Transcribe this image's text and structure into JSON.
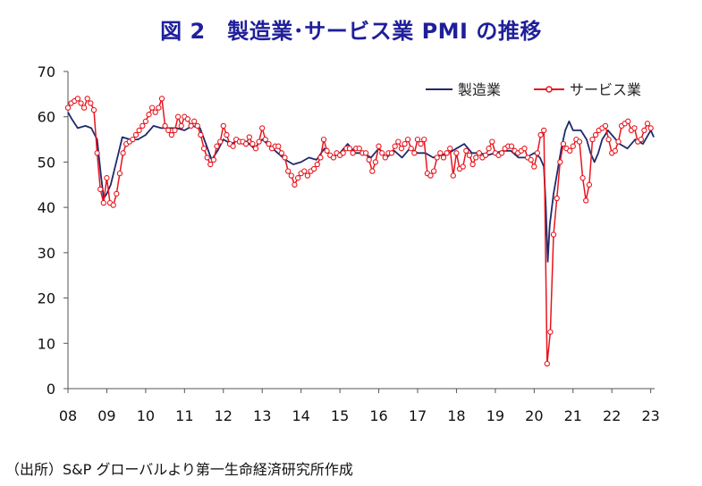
{
  "figure": {
    "title": "図 2　製造業･サービス業 PMI の推移",
    "source": "（出所）S&P グローバルより第一生命経済研究所作成"
  },
  "colors": {
    "title": "#1f1f9a",
    "manufacturing": "#1f2a6b",
    "services": "#e8141c",
    "axis": "#555555"
  },
  "chart_data": {
    "type": "line",
    "title": "図 2　製造業･サービス業 PMI の推移",
    "xlabel": "",
    "ylabel": "",
    "xlim": [
      2008,
      2023.1
    ],
    "ylim": [
      0,
      70
    ],
    "y_ticks": [
      0,
      10,
      20,
      30,
      40,
      50,
      60,
      70
    ],
    "x_ticks": [
      {
        "value": 2008,
        "label": "08"
      },
      {
        "value": 2009,
        "label": "09"
      },
      {
        "value": 2010,
        "label": "10"
      },
      {
        "value": 2011,
        "label": "11"
      },
      {
        "value": 2012,
        "label": "12"
      },
      {
        "value": 2013,
        "label": "13"
      },
      {
        "value": 2014,
        "label": "14"
      },
      {
        "value": 2015,
        "label": "15"
      },
      {
        "value": 2016,
        "label": "16"
      },
      {
        "value": 2017,
        "label": "17"
      },
      {
        "value": 2018,
        "label": "18"
      },
      {
        "value": 2019,
        "label": "19"
      },
      {
        "value": 2020,
        "label": "20"
      },
      {
        "value": 2021,
        "label": "21"
      },
      {
        "value": 2022,
        "label": "22"
      },
      {
        "value": 2023,
        "label": "23"
      }
    ],
    "grid": false,
    "legend": "top-right",
    "series": [
      {
        "name": "製造業",
        "key": "manufacturing",
        "marker": "none",
        "points": [
          [
            2008.0,
            61
          ],
          [
            2008.1,
            59.5
          ],
          [
            2008.25,
            57.5
          ],
          [
            2008.45,
            58
          ],
          [
            2008.6,
            57.5
          ],
          [
            2008.75,
            55
          ],
          [
            2008.85,
            47
          ],
          [
            2008.92,
            42
          ],
          [
            2009.0,
            43
          ],
          [
            2009.1,
            45
          ],
          [
            2009.3,
            52
          ],
          [
            2009.4,
            55.5
          ],
          [
            2009.6,
            55
          ],
          [
            2009.8,
            55
          ],
          [
            2010.0,
            56
          ],
          [
            2010.2,
            58
          ],
          [
            2010.4,
            57.5
          ],
          [
            2010.6,
            57.5
          ],
          [
            2010.8,
            57.5
          ],
          [
            2011.0,
            57
          ],
          [
            2011.2,
            58
          ],
          [
            2011.4,
            57.5
          ],
          [
            2011.55,
            54
          ],
          [
            2011.7,
            50.5
          ],
          [
            2011.85,
            52.5
          ],
          [
            2012.0,
            55
          ],
          [
            2012.2,
            54
          ],
          [
            2012.4,
            55
          ],
          [
            2012.6,
            54.5
          ],
          [
            2012.8,
            53
          ],
          [
            2013.0,
            55
          ],
          [
            2013.2,
            53.5
          ],
          [
            2013.4,
            52
          ],
          [
            2013.6,
            50.5
          ],
          [
            2013.8,
            49.5
          ],
          [
            2014.0,
            50
          ],
          [
            2014.2,
            51
          ],
          [
            2014.4,
            50.5
          ],
          [
            2014.6,
            53
          ],
          [
            2014.8,
            51
          ],
          [
            2015.0,
            52
          ],
          [
            2015.2,
            54
          ],
          [
            2015.4,
            52
          ],
          [
            2015.6,
            52
          ],
          [
            2015.8,
            51
          ],
          [
            2016.0,
            53
          ],
          [
            2016.2,
            51
          ],
          [
            2016.4,
            52.5
          ],
          [
            2016.6,
            51
          ],
          [
            2016.8,
            53
          ],
          [
            2017.0,
            52
          ],
          [
            2017.2,
            52
          ],
          [
            2017.4,
            51
          ],
          [
            2017.6,
            51.5
          ],
          [
            2017.8,
            52
          ],
          [
            2018.0,
            53
          ],
          [
            2018.2,
            54
          ],
          [
            2018.4,
            52
          ],
          [
            2018.6,
            52
          ],
          [
            2018.8,
            51.5
          ],
          [
            2019.0,
            52
          ],
          [
            2019.2,
            52.5
          ],
          [
            2019.4,
            52.5
          ],
          [
            2019.6,
            51
          ],
          [
            2019.8,
            51
          ],
          [
            2020.0,
            52
          ],
          [
            2020.15,
            51
          ],
          [
            2020.25,
            49
          ],
          [
            2020.3,
            40
          ],
          [
            2020.35,
            28
          ],
          [
            2020.4,
            36
          ],
          [
            2020.5,
            43
          ],
          [
            2020.6,
            48
          ],
          [
            2020.7,
            53
          ],
          [
            2020.8,
            57
          ],
          [
            2020.9,
            59
          ],
          [
            2021.0,
            57
          ],
          [
            2021.2,
            57
          ],
          [
            2021.35,
            55
          ],
          [
            2021.45,
            52
          ],
          [
            2021.55,
            50
          ],
          [
            2021.65,
            52
          ],
          [
            2021.75,
            55
          ],
          [
            2021.9,
            57
          ],
          [
            2022.0,
            56
          ],
          [
            2022.2,
            54
          ],
          [
            2022.4,
            53
          ],
          [
            2022.6,
            55
          ],
          [
            2022.8,
            54
          ],
          [
            2023.0,
            57
          ],
          [
            2023.08,
            55.5
          ]
        ]
      },
      {
        "name": "サービス業",
        "key": "services",
        "marker": "open-circle",
        "points": [
          [
            2008.0,
            62
          ],
          [
            2008.083,
            63
          ],
          [
            2008.167,
            63.5
          ],
          [
            2008.25,
            64
          ],
          [
            2008.333,
            63
          ],
          [
            2008.417,
            62
          ],
          [
            2008.5,
            64
          ],
          [
            2008.583,
            63
          ],
          [
            2008.667,
            61.5
          ],
          [
            2008.75,
            52
          ],
          [
            2008.833,
            44
          ],
          [
            2008.917,
            41
          ],
          [
            2009.0,
            46.5
          ],
          [
            2009.083,
            41
          ],
          [
            2009.167,
            40.5
          ],
          [
            2009.25,
            43
          ],
          [
            2009.333,
            47.5
          ],
          [
            2009.417,
            52
          ],
          [
            2009.5,
            54
          ],
          [
            2009.583,
            54.5
          ],
          [
            2009.667,
            55
          ],
          [
            2009.75,
            56
          ],
          [
            2009.833,
            57
          ],
          [
            2009.917,
            58
          ],
          [
            2010.0,
            59
          ],
          [
            2010.083,
            60.5
          ],
          [
            2010.167,
            62
          ],
          [
            2010.25,
            61
          ],
          [
            2010.333,
            62
          ],
          [
            2010.417,
            64
          ],
          [
            2010.5,
            58
          ],
          [
            2010.583,
            57
          ],
          [
            2010.667,
            56
          ],
          [
            2010.75,
            57
          ],
          [
            2010.833,
            60
          ],
          [
            2010.917,
            58
          ],
          [
            2011.0,
            60
          ],
          [
            2011.083,
            59.5
          ],
          [
            2011.167,
            58
          ],
          [
            2011.25,
            59
          ],
          [
            2011.333,
            58
          ],
          [
            2011.417,
            56
          ],
          [
            2011.5,
            53
          ],
          [
            2011.583,
            51
          ],
          [
            2011.667,
            49.5
          ],
          [
            2011.75,
            50.5
          ],
          [
            2011.833,
            53.5
          ],
          [
            2011.917,
            54.5
          ],
          [
            2012.0,
            58
          ],
          [
            2012.083,
            56
          ],
          [
            2012.167,
            54
          ],
          [
            2012.25,
            53.5
          ],
          [
            2012.333,
            55
          ],
          [
            2012.417,
            54.5
          ],
          [
            2012.5,
            54.5
          ],
          [
            2012.583,
            54
          ],
          [
            2012.667,
            55.5
          ],
          [
            2012.75,
            54
          ],
          [
            2012.833,
            53
          ],
          [
            2012.917,
            54.5
          ],
          [
            2013.0,
            57.5
          ],
          [
            2013.083,
            55
          ],
          [
            2013.167,
            54
          ],
          [
            2013.25,
            53
          ],
          [
            2013.333,
            53.5
          ],
          [
            2013.417,
            53.5
          ],
          [
            2013.5,
            52
          ],
          [
            2013.583,
            51
          ],
          [
            2013.667,
            48
          ],
          [
            2013.75,
            47
          ],
          [
            2013.833,
            45
          ],
          [
            2013.917,
            46.5
          ],
          [
            2014.0,
            47.5
          ],
          [
            2014.083,
            48
          ],
          [
            2014.167,
            47
          ],
          [
            2014.25,
            48
          ],
          [
            2014.333,
            48.5
          ],
          [
            2014.417,
            49.5
          ],
          [
            2014.5,
            51
          ],
          [
            2014.583,
            55
          ],
          [
            2014.667,
            52.5
          ],
          [
            2014.75,
            51.5
          ],
          [
            2014.833,
            51
          ],
          [
            2014.917,
            52
          ],
          [
            2015.0,
            51.5
          ],
          [
            2015.083,
            52
          ],
          [
            2015.167,
            53
          ],
          [
            2015.25,
            53
          ],
          [
            2015.333,
            52
          ],
          [
            2015.417,
            53
          ],
          [
            2015.5,
            53
          ],
          [
            2015.583,
            52
          ],
          [
            2015.667,
            52
          ],
          [
            2015.75,
            50.5
          ],
          [
            2015.833,
            48
          ],
          [
            2015.917,
            50
          ],
          [
            2016.0,
            53.5
          ],
          [
            2016.083,
            52
          ],
          [
            2016.167,
            51
          ],
          [
            2016.25,
            52
          ],
          [
            2016.333,
            52
          ],
          [
            2016.417,
            53.5
          ],
          [
            2016.5,
            54.5
          ],
          [
            2016.583,
            53
          ],
          [
            2016.667,
            54
          ],
          [
            2016.75,
            55
          ],
          [
            2016.833,
            53
          ],
          [
            2016.917,
            52
          ],
          [
            2017.0,
            55
          ],
          [
            2017.083,
            54
          ],
          [
            2017.167,
            55
          ],
          [
            2017.25,
            47.5
          ],
          [
            2017.333,
            47
          ],
          [
            2017.417,
            48
          ],
          [
            2017.5,
            51
          ],
          [
            2017.583,
            52
          ],
          [
            2017.667,
            51
          ],
          [
            2017.75,
            52
          ],
          [
            2017.833,
            53
          ],
          [
            2017.917,
            47
          ],
          [
            2018.0,
            52
          ],
          [
            2018.083,
            48.5
          ],
          [
            2018.167,
            49
          ],
          [
            2018.25,
            52.5
          ],
          [
            2018.333,
            51.5
          ],
          [
            2018.417,
            49.5
          ],
          [
            2018.5,
            51
          ],
          [
            2018.583,
            52
          ],
          [
            2018.667,
            51
          ],
          [
            2018.75,
            51.5
          ],
          [
            2018.833,
            53
          ],
          [
            2018.917,
            54.5
          ],
          [
            2019.0,
            52
          ],
          [
            2019.083,
            51.5
          ],
          [
            2019.167,
            52
          ],
          [
            2019.25,
            53
          ],
          [
            2019.333,
            53.5
          ],
          [
            2019.417,
            53.5
          ],
          [
            2019.5,
            52.5
          ],
          [
            2019.583,
            52
          ],
          [
            2019.667,
            52.5
          ],
          [
            2019.75,
            53
          ],
          [
            2019.833,
            51
          ],
          [
            2019.917,
            50.5
          ],
          [
            2020.0,
            49
          ],
          [
            2020.083,
            52
          ],
          [
            2020.167,
            56
          ],
          [
            2020.25,
            57
          ],
          [
            2020.333,
            5.5
          ],
          [
            2020.417,
            12.5
          ],
          [
            2020.5,
            34
          ],
          [
            2020.583,
            42
          ],
          [
            2020.667,
            50
          ],
          [
            2020.75,
            54
          ],
          [
            2020.833,
            53
          ],
          [
            2020.917,
            52.5
          ],
          [
            2021.0,
            53.5
          ],
          [
            2021.083,
            55
          ],
          [
            2021.167,
            54.5
          ],
          [
            2021.25,
            46.5
          ],
          [
            2021.333,
            41.5
          ],
          [
            2021.417,
            45
          ],
          [
            2021.5,
            55
          ],
          [
            2021.583,
            56
          ],
          [
            2021.667,
            57
          ],
          [
            2021.75,
            57.5
          ],
          [
            2021.833,
            58
          ],
          [
            2021.917,
            55
          ],
          [
            2022.0,
            52
          ],
          [
            2022.083,
            52.5
          ],
          [
            2022.167,
            54.5
          ],
          [
            2022.25,
            58
          ],
          [
            2022.333,
            58.5
          ],
          [
            2022.417,
            59
          ],
          [
            2022.5,
            57
          ],
          [
            2022.583,
            57.5
          ],
          [
            2022.667,
            54.5
          ],
          [
            2022.75,
            55
          ],
          [
            2022.833,
            57
          ],
          [
            2022.917,
            58.5
          ],
          [
            2023.0,
            57.5
          ]
        ]
      }
    ]
  }
}
